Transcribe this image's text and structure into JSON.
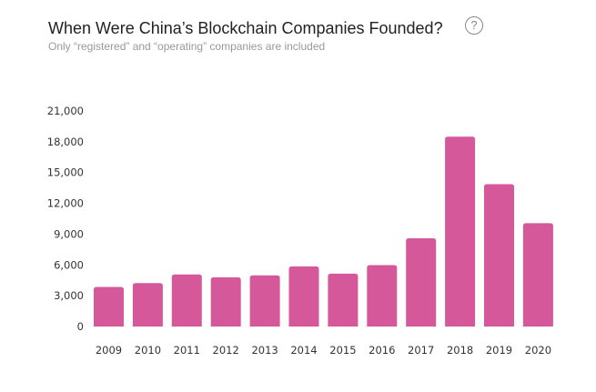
{
  "header": {
    "title": "When Were China’s Blockchain Companies Founded?",
    "subtitle": "Only “registered” and “operating” companies are included",
    "help_icon": "question-circle-icon",
    "help_glyph": "?"
  },
  "chart_data": {
    "type": "bar",
    "title": "When Were China’s Blockchain Companies Founded?",
    "subtitle": "Only “registered” and “operating” companies are included",
    "categories": [
      "2009",
      "2010",
      "2011",
      "2012",
      "2013",
      "2014",
      "2015",
      "2016",
      "2017",
      "2018",
      "2019",
      "2020"
    ],
    "values": [
      3850,
      4230,
      5070,
      4800,
      4980,
      5860,
      5150,
      5980,
      8600,
      18500,
      13870,
      10070
    ],
    "ylim": [
      0,
      21000
    ],
    "yticks": [
      0,
      3000,
      6000,
      9000,
      12000,
      15000,
      18000,
      21000
    ],
    "ytick_labels": [
      "0",
      "3,000",
      "6,000",
      "9,000",
      "12,000",
      "15,000",
      "18,000",
      "21,000"
    ],
    "xlabel": "",
    "ylabel": "",
    "grid": false,
    "legend": "none",
    "bar_color": "#d5589a"
  }
}
